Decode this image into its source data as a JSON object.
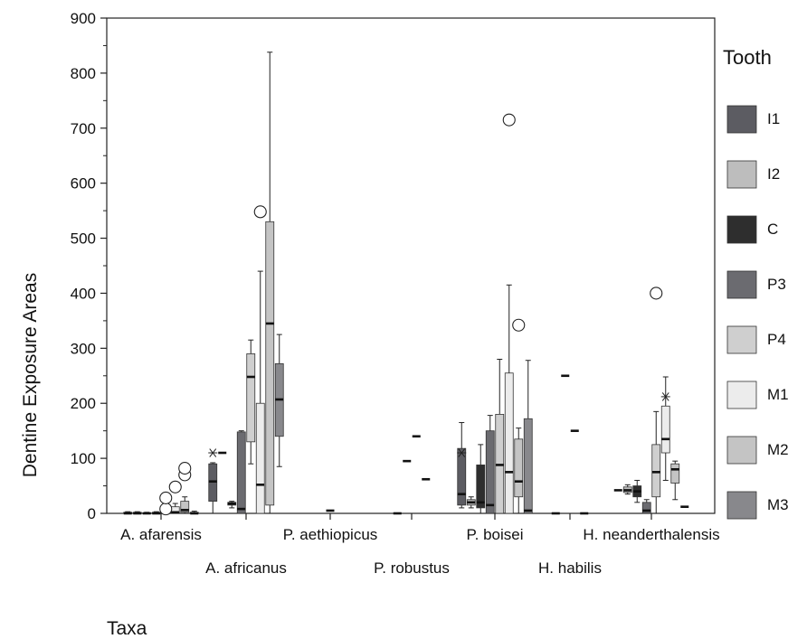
{
  "chart_data": {
    "type": "boxplot",
    "ylabel": "Dentine Exposure Areas",
    "xlabel": "Taxa",
    "ylim": [
      0,
      900
    ],
    "yticks": [
      0,
      100,
      200,
      300,
      400,
      500,
      600,
      700,
      800,
      900
    ],
    "yticks_labels": [
      "0",
      "100",
      "200",
      "300",
      "400",
      "500",
      "600",
      "700",
      "800",
      "900"
    ],
    "legend": {
      "title": "Tooth",
      "placement": "right"
    },
    "series": [
      {
        "name": "I1",
        "color": "#5c5c62"
      },
      {
        "name": "I2",
        "color": "#bdbdbd"
      },
      {
        "name": "C",
        "color": "#2e2e2e"
      },
      {
        "name": "P3",
        "color": "#6b6b70"
      },
      {
        "name": "P4",
        "color": "#cfcfcf"
      },
      {
        "name": "M1",
        "color": "#ececec"
      },
      {
        "name": "M2",
        "color": "#c4c4c4"
      },
      {
        "name": "M3",
        "color": "#88888c"
      }
    ],
    "categories": [
      {
        "name": "A. afarensis",
        "boxes": [
          {
            "tooth": "I1",
            "min": 0,
            "q1": 0,
            "median": 0,
            "q3": 2,
            "max": 3
          },
          {
            "tooth": "I2",
            "min": 0,
            "q1": 0,
            "median": 0,
            "q3": 2,
            "max": 3
          },
          {
            "tooth": "C",
            "min": 0,
            "q1": 0,
            "median": 0,
            "q3": 1,
            "max": 2
          },
          {
            "tooth": "P3",
            "min": 0,
            "q1": 0,
            "median": 0,
            "q3": 2,
            "max": 3
          },
          {
            "tooth": "P4",
            "min": 0,
            "q1": 0,
            "median": 1,
            "q3": 4,
            "max": 6
          },
          {
            "tooth": "M1",
            "min": 0,
            "q1": 0,
            "median": 2,
            "q3": 12,
            "max": 18
          },
          {
            "tooth": "M2",
            "min": 0,
            "q1": 2,
            "median": 6,
            "q3": 22,
            "max": 30
          },
          {
            "tooth": "M3",
            "min": 0,
            "q1": 0,
            "median": 0,
            "q3": 2,
            "max": 4
          }
        ],
        "outliers": [
          {
            "tooth": "P4",
            "value": 8,
            "symbol": "circle"
          },
          {
            "tooth": "P4",
            "value": 28,
            "symbol": "circle"
          },
          {
            "tooth": "M1",
            "value": 48,
            "symbol": "circle"
          },
          {
            "tooth": "M2",
            "value": 70,
            "symbol": "circle"
          },
          {
            "tooth": "M2",
            "value": 82,
            "symbol": "circle"
          }
        ]
      },
      {
        "name": "A. africanus",
        "boxes": [
          {
            "tooth": "I1",
            "min": 0,
            "q1": 22,
            "median": 58,
            "q3": 90,
            "max": 92
          },
          {
            "tooth": "I2",
            "min": 110,
            "q1": 110,
            "median": 110,
            "q3": 110,
            "max": 110
          },
          {
            "tooth": "C",
            "min": 10,
            "q1": 15,
            "median": 18,
            "q3": 20,
            "max": 22
          },
          {
            "tooth": "P3",
            "min": 0,
            "q1": 0,
            "median": 8,
            "q3": 148,
            "max": 150
          },
          {
            "tooth": "P4",
            "min": 90,
            "q1": 130,
            "median": 248,
            "q3": 290,
            "max": 315
          },
          {
            "tooth": "M1",
            "min": 0,
            "q1": 0,
            "median": 52,
            "q3": 200,
            "max": 440
          },
          {
            "tooth": "M2",
            "min": 0,
            "q1": 15,
            "median": 345,
            "q3": 530,
            "max": 838
          },
          {
            "tooth": "M3",
            "min": 85,
            "q1": 140,
            "median": 207,
            "q3": 272,
            "max": 325
          }
        ],
        "outliers": [
          {
            "tooth": "I1",
            "value": 110,
            "symbol": "star"
          },
          {
            "tooth": "M1",
            "value": 548,
            "symbol": "circle"
          }
        ]
      },
      {
        "name": "P. aethiopicus",
        "boxes": [
          {
            "tooth": "M1",
            "min": 5,
            "q1": 5,
            "median": 5,
            "q3": 5,
            "max": 5
          }
        ],
        "outliers": []
      },
      {
        "name": "P. robustus",
        "boxes": [
          {
            "tooth": "I1",
            "min": 0,
            "q1": 0,
            "median": 0,
            "q3": 0,
            "max": 0
          },
          {
            "tooth": "I2",
            "min": 95,
            "q1": 95,
            "median": 95,
            "q3": 95,
            "max": 95
          },
          {
            "tooth": "C",
            "min": 140,
            "q1": 140,
            "median": 140,
            "q3": 140,
            "max": 140
          },
          {
            "tooth": "P3",
            "min": 62,
            "q1": 62,
            "median": 62,
            "q3": 62,
            "max": 62
          }
        ],
        "outliers": []
      },
      {
        "name": "P. boisei",
        "boxes": [
          {
            "tooth": "I1",
            "min": 10,
            "q1": 15,
            "median": 35,
            "q3": 118,
            "max": 165
          },
          {
            "tooth": "I2",
            "min": 10,
            "q1": 15,
            "median": 20,
            "q3": 25,
            "max": 30
          },
          {
            "tooth": "C",
            "min": 0,
            "q1": 10,
            "median": 20,
            "q3": 88,
            "max": 125
          },
          {
            "tooth": "P3",
            "min": 0,
            "q1": 0,
            "median": 15,
            "q3": 150,
            "max": 178
          },
          {
            "tooth": "P4",
            "min": 0,
            "q1": 0,
            "median": 88,
            "q3": 180,
            "max": 280
          },
          {
            "tooth": "M1",
            "min": 0,
            "q1": 0,
            "median": 75,
            "q3": 255,
            "max": 415
          },
          {
            "tooth": "M2",
            "min": 0,
            "q1": 30,
            "median": 58,
            "q3": 135,
            "max": 155
          },
          {
            "tooth": "M3",
            "min": 0,
            "q1": 0,
            "median": 5,
            "q3": 172,
            "max": 278
          }
        ],
        "outliers": [
          {
            "tooth": "I1",
            "value": 110,
            "symbol": "star"
          },
          {
            "tooth": "M1",
            "value": 715,
            "symbol": "circle"
          },
          {
            "tooth": "M2",
            "value": 342,
            "symbol": "circle"
          }
        ]
      },
      {
        "name": "H. habilis",
        "boxes": [
          {
            "tooth": "I1",
            "min": 0,
            "q1": 0,
            "median": 0,
            "q3": 0,
            "max": 0
          },
          {
            "tooth": "I2",
            "min": 250,
            "q1": 250,
            "median": 250,
            "q3": 250,
            "max": 250
          },
          {
            "tooth": "C",
            "min": 150,
            "q1": 150,
            "median": 150,
            "q3": 150,
            "max": 150
          },
          {
            "tooth": "P3",
            "min": 0,
            "q1": 0,
            "median": 0,
            "q3": 0,
            "max": 0
          }
        ],
        "outliers": []
      },
      {
        "name": "H. neanderthalensis",
        "boxes": [
          {
            "tooth": "I1",
            "min": 42,
            "q1": 42,
            "median": 42,
            "q3": 42,
            "max": 42
          },
          {
            "tooth": "I2",
            "min": 35,
            "q1": 38,
            "median": 42,
            "q3": 48,
            "max": 52
          },
          {
            "tooth": "C",
            "min": 20,
            "q1": 30,
            "median": 40,
            "q3": 50,
            "max": 60
          },
          {
            "tooth": "P3",
            "min": 0,
            "q1": 0,
            "median": 5,
            "q3": 20,
            "max": 25
          },
          {
            "tooth": "P4",
            "min": 0,
            "q1": 30,
            "median": 75,
            "q3": 125,
            "max": 185
          },
          {
            "tooth": "M1",
            "min": 60,
            "q1": 110,
            "median": 135,
            "q3": 195,
            "max": 248
          },
          {
            "tooth": "M2",
            "min": 25,
            "q1": 55,
            "median": 80,
            "q3": 90,
            "max": 95
          },
          {
            "tooth": "M3",
            "min": 12,
            "q1": 12,
            "median": 12,
            "q3": 12,
            "max": 12
          }
        ],
        "outliers": [
          {
            "tooth": "P4",
            "value": 400,
            "symbol": "circle"
          },
          {
            "tooth": "M1",
            "value": 212,
            "symbol": "star"
          }
        ]
      }
    ]
  }
}
